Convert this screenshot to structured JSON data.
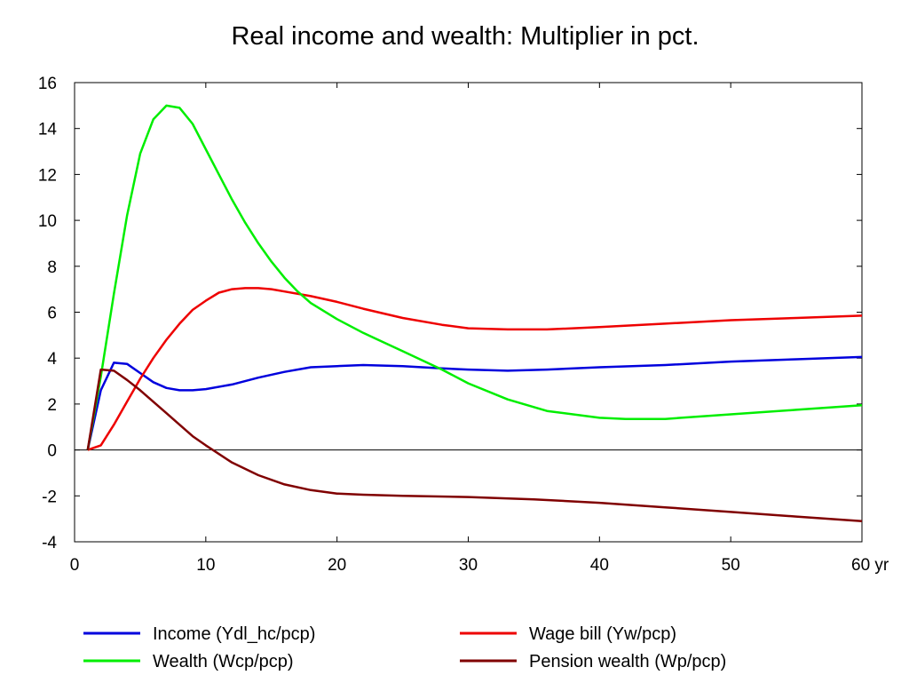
{
  "chart_data": {
    "type": "line",
    "title": "Real income and wealth: Multiplier in pct.",
    "xlabel": "",
    "ylabel": "",
    "x_unit_label": "yr",
    "xlim": [
      0,
      60
    ],
    "ylim": [
      -4,
      16
    ],
    "xticks": [
      0,
      10,
      20,
      30,
      40,
      50,
      60
    ],
    "xtick_labels": [
      "0",
      "10",
      "20",
      "30",
      "40",
      "50",
      "60 yr"
    ],
    "yticks": [
      -4,
      -2,
      0,
      2,
      4,
      6,
      8,
      10,
      12,
      14,
      16
    ],
    "ytick_labels": [
      "-4",
      "-2",
      "0",
      "2",
      "4",
      "6",
      "8",
      "10",
      "12",
      "14",
      "16"
    ],
    "grid": false,
    "legend_placement": "bottom",
    "series": [
      {
        "name": "Income (Ydl_hc/pcp)",
        "color": "#0000dd",
        "x": [
          1,
          2,
          3,
          4,
          5,
          6,
          7,
          8,
          9,
          10,
          12,
          14,
          16,
          18,
          20,
          22,
          25,
          28,
          30,
          33,
          36,
          40,
          45,
          50,
          55,
          60
        ],
        "y": [
          0,
          2.6,
          3.8,
          3.75,
          3.35,
          2.95,
          2.7,
          2.6,
          2.6,
          2.65,
          2.85,
          3.15,
          3.4,
          3.6,
          3.65,
          3.7,
          3.65,
          3.55,
          3.5,
          3.45,
          3.5,
          3.6,
          3.7,
          3.85,
          3.95,
          4.05
        ]
      },
      {
        "name": "Wage bill (Yw/pcp)",
        "color": "#ee0000",
        "x": [
          1,
          2,
          3,
          4,
          5,
          6,
          7,
          8,
          9,
          10,
          11,
          12,
          13,
          14,
          15,
          16,
          18,
          20,
          22,
          25,
          28,
          30,
          33,
          36,
          40,
          45,
          50,
          55,
          60
        ],
        "y": [
          0,
          0.2,
          1.1,
          2.1,
          3.1,
          4.0,
          4.8,
          5.5,
          6.1,
          6.5,
          6.85,
          7.0,
          7.05,
          7.05,
          7.0,
          6.9,
          6.7,
          6.45,
          6.15,
          5.75,
          5.45,
          5.3,
          5.25,
          5.25,
          5.35,
          5.5,
          5.65,
          5.75,
          5.85
        ]
      },
      {
        "name": "Wealth (Wcp/pcp)",
        "color": "#00ee00",
        "x": [
          1,
          2,
          3,
          4,
          5,
          6,
          7,
          8,
          9,
          10,
          11,
          12,
          13,
          14,
          15,
          16,
          17,
          18,
          20,
          22,
          25,
          28,
          30,
          33,
          36,
          40,
          42,
          45,
          50,
          55,
          60
        ],
        "y": [
          0,
          3.2,
          6.8,
          10.2,
          12.9,
          14.4,
          15.0,
          14.9,
          14.2,
          13.1,
          12.0,
          10.9,
          9.9,
          9.0,
          8.2,
          7.5,
          6.9,
          6.4,
          5.7,
          5.1,
          4.3,
          3.5,
          2.9,
          2.2,
          1.7,
          1.4,
          1.35,
          1.35,
          1.55,
          1.75,
          1.95
        ]
      },
      {
        "name": "Pension wealth (Wp/pcp)",
        "color": "#800000",
        "x": [
          1,
          2,
          3,
          4,
          5,
          6,
          7,
          8,
          9,
          10,
          12,
          14,
          16,
          18,
          20,
          22,
          25,
          30,
          35,
          40,
          45,
          50,
          55,
          60
        ],
        "y": [
          0,
          3.5,
          3.45,
          3.05,
          2.6,
          2.1,
          1.6,
          1.1,
          0.6,
          0.2,
          -0.55,
          -1.1,
          -1.5,
          -1.75,
          -1.9,
          -1.95,
          -2.0,
          -2.05,
          -2.15,
          -2.3,
          -2.5,
          -2.7,
          -2.9,
          -3.1
        ]
      }
    ]
  }
}
